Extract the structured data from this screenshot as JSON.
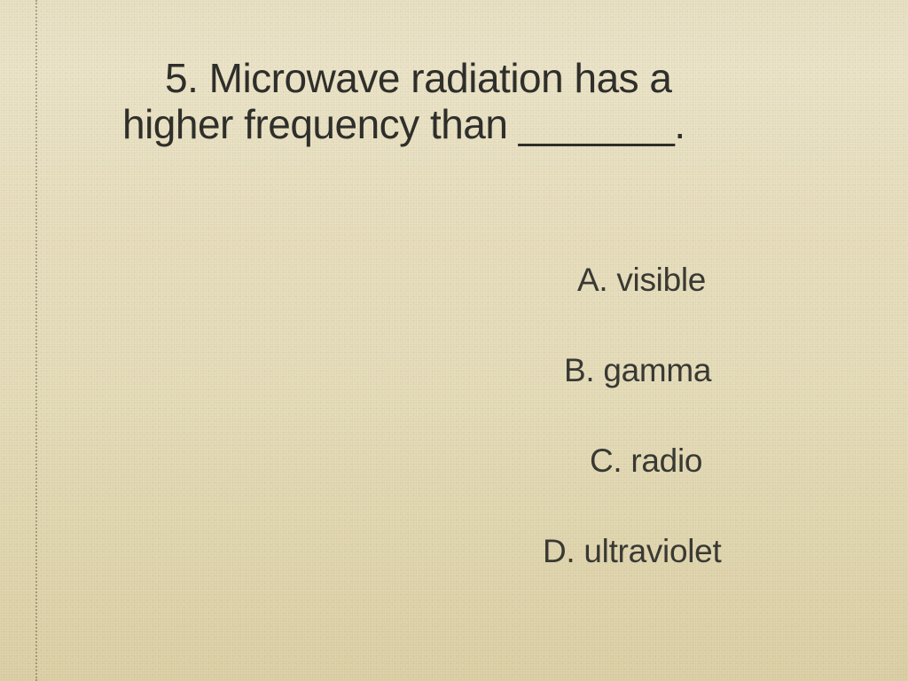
{
  "slide": {
    "background_color": "#e8dfbf",
    "vignette_color": "#5a4b28",
    "margin_rule_color": "#3c3728",
    "text_color": "#2f2f2b"
  },
  "question": {
    "number": "5.",
    "text_line1": "5. Microwave radiation has a",
    "text_line2": "higher frequency than _______.",
    "fontsize": 46
  },
  "options": {
    "a": "A. visible",
    "b": "B. gamma",
    "c": "C. radio",
    "d": "D. ultraviolet",
    "fontsize": 37
  }
}
